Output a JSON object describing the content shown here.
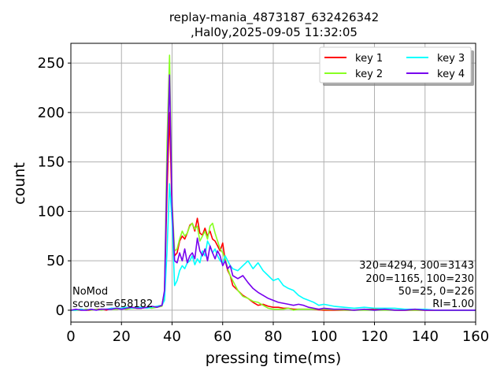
{
  "chart_data": {
    "type": "line",
    "title_line1": "replay-mania_4873187_632426342",
    "title_line2": ",Hal0y,2025-09-05 11:32:05",
    "xlabel": "pressing time(ms)",
    "ylabel": "count",
    "xlim": [
      0,
      160
    ],
    "ylim": [
      -12,
      270
    ],
    "xticks": [
      0,
      20,
      40,
      60,
      80,
      100,
      120,
      140,
      160
    ],
    "yticks": [
      0,
      50,
      100,
      150,
      200,
      250
    ],
    "grid": true,
    "legend_position": "top-right",
    "annotation_left": [
      "NoMod",
      "scores=658182"
    ],
    "annotation_right": [
      "320=4294, 300=3143",
      "200=1165, 100=230",
      "50=25, 0=226",
      "RI=1.00"
    ],
    "series": [
      {
        "name": "key 1",
        "color": "#ff0000",
        "x": [
          0,
          2,
          4,
          6,
          8,
          10,
          12,
          14,
          16,
          18,
          20,
          22,
          24,
          26,
          28,
          30,
          32,
          34,
          36,
          37,
          38,
          39,
          40,
          41,
          42,
          43,
          44,
          45,
          46,
          47,
          48,
          49,
          50,
          51,
          52,
          53,
          54,
          55,
          56,
          57,
          58,
          59,
          60,
          61,
          62,
          63,
          64,
          66,
          68,
          70,
          72,
          74,
          76,
          78,
          80,
          82,
          84,
          86,
          88,
          90,
          95,
          100,
          110,
          120,
          130,
          140,
          150,
          160
        ],
        "y": [
          0,
          0,
          1,
          0,
          0,
          1,
          1,
          0,
          2,
          1,
          2,
          1,
          3,
          2,
          2,
          3,
          2,
          4,
          5,
          18,
          120,
          200,
          100,
          55,
          58,
          70,
          75,
          72,
          78,
          86,
          88,
          80,
          93,
          78,
          76,
          83,
          75,
          80,
          72,
          70,
          65,
          60,
          68,
          50,
          40,
          35,
          25,
          20,
          15,
          12,
          8,
          5,
          6,
          4,
          3,
          3,
          2,
          2,
          1,
          1,
          1,
          0,
          0,
          1,
          0,
          0,
          0,
          0
        ]
      },
      {
        "name": "key 2",
        "color": "#88ff22",
        "x": [
          0,
          2,
          4,
          6,
          8,
          10,
          12,
          14,
          16,
          18,
          20,
          22,
          24,
          26,
          28,
          30,
          32,
          34,
          36,
          37,
          38,
          39,
          40,
          41,
          42,
          43,
          44,
          45,
          46,
          47,
          48,
          49,
          50,
          51,
          52,
          53,
          54,
          55,
          56,
          57,
          58,
          59,
          60,
          61,
          62,
          63,
          64,
          66,
          68,
          70,
          72,
          74,
          76,
          78,
          80,
          82,
          84,
          86,
          88,
          90,
          95,
          100,
          110,
          120,
          130,
          140,
          150,
          160
        ],
        "y": [
          0,
          0,
          0,
          1,
          0,
          1,
          0,
          1,
          1,
          1,
          2,
          1,
          2,
          2,
          2,
          3,
          2,
          3,
          4,
          15,
          170,
          258,
          110,
          60,
          62,
          72,
          80,
          75,
          78,
          85,
          88,
          82,
          85,
          70,
          75,
          80,
          72,
          85,
          88,
          78,
          70,
          62,
          58,
          52,
          42,
          35,
          30,
          20,
          14,
          12,
          9,
          8,
          5,
          2,
          1,
          1,
          1,
          2,
          0,
          1,
          1,
          1,
          0,
          0,
          0,
          0,
          0,
          0
        ]
      },
      {
        "name": "key 3",
        "color": "#00ffff",
        "x": [
          0,
          2,
          4,
          6,
          8,
          10,
          12,
          14,
          16,
          18,
          20,
          22,
          24,
          26,
          28,
          30,
          32,
          34,
          36,
          37,
          38,
          39,
          40,
          41,
          42,
          43,
          44,
          45,
          46,
          47,
          48,
          49,
          50,
          51,
          52,
          53,
          54,
          55,
          56,
          57,
          58,
          59,
          60,
          61,
          62,
          63,
          64,
          66,
          68,
          70,
          72,
          74,
          76,
          78,
          80,
          82,
          84,
          86,
          88,
          90,
          92,
          94,
          96,
          98,
          100,
          104,
          108,
          112,
          116,
          120,
          124,
          128,
          132,
          136,
          140,
          144,
          148,
          152,
          156,
          160
        ],
        "y": [
          0,
          0,
          1,
          0,
          1,
          0,
          1,
          1,
          2,
          2,
          2,
          3,
          2,
          3,
          3,
          2,
          3,
          4,
          5,
          10,
          60,
          128,
          90,
          25,
          30,
          40,
          45,
          42,
          48,
          50,
          55,
          46,
          52,
          48,
          60,
          55,
          70,
          65,
          58,
          62,
          55,
          50,
          48,
          55,
          50,
          45,
          42,
          40,
          45,
          50,
          42,
          48,
          40,
          35,
          30,
          32,
          25,
          22,
          20,
          15,
          12,
          10,
          8,
          5,
          6,
          4,
          3,
          2,
          3,
          2,
          2,
          2,
          1,
          1,
          1,
          0,
          0,
          0,
          0,
          0
        ]
      },
      {
        "name": "key 4",
        "color": "#7700ee",
        "x": [
          0,
          2,
          4,
          6,
          8,
          10,
          12,
          14,
          16,
          18,
          20,
          22,
          24,
          26,
          28,
          30,
          32,
          34,
          36,
          37,
          38,
          39,
          40,
          41,
          42,
          43,
          44,
          45,
          46,
          47,
          48,
          49,
          50,
          51,
          52,
          53,
          54,
          55,
          56,
          57,
          58,
          59,
          60,
          61,
          62,
          63,
          64,
          66,
          68,
          70,
          72,
          74,
          76,
          78,
          80,
          82,
          84,
          86,
          88,
          90,
          92,
          94,
          96,
          98,
          100,
          104,
          108,
          112,
          116,
          120,
          124,
          128,
          132,
          136,
          140,
          144,
          148,
          152,
          156,
          160
        ],
        "y": [
          0,
          1,
          0,
          0,
          1,
          0,
          1,
          1,
          1,
          2,
          1,
          2,
          3,
          2,
          2,
          3,
          4,
          3,
          5,
          20,
          140,
          238,
          105,
          50,
          48,
          58,
          50,
          62,
          48,
          55,
          58,
          52,
          73,
          60,
          55,
          62,
          50,
          65,
          58,
          52,
          60,
          55,
          45,
          50,
          42,
          45,
          35,
          32,
          35,
          28,
          22,
          18,
          15,
          12,
          10,
          8,
          7,
          6,
          5,
          6,
          5,
          3,
          2,
          1,
          2,
          1,
          1,
          0,
          1,
          0,
          1,
          0,
          0,
          1,
          0,
          0,
          0,
          0,
          0,
          0
        ]
      }
    ]
  }
}
